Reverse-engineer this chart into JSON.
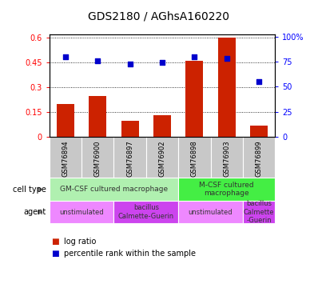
{
  "title": "GDS2180 / AGhsA160220",
  "samples": [
    "GSM76894",
    "GSM76900",
    "GSM76897",
    "GSM76902",
    "GSM76898",
    "GSM76903",
    "GSM76899"
  ],
  "log_ratio": [
    0.2,
    0.25,
    0.1,
    0.13,
    0.46,
    0.6,
    0.07
  ],
  "percentile_rank": [
    0.8,
    0.76,
    0.73,
    0.74,
    0.8,
    0.78,
    0.55
  ],
  "bar_color": "#cc2200",
  "scatter_color": "#0000cc",
  "left_yticks": [
    0,
    0.15,
    0.3,
    0.45,
    0.6
  ],
  "left_yticklabels": [
    "0",
    "0.15",
    "0.3",
    "0.45",
    "0.6"
  ],
  "right_yticks": [
    0,
    0.25,
    0.5,
    0.75,
    1.0
  ],
  "right_yticklabels": [
    "0",
    "25",
    "50",
    "75",
    "100%"
  ],
  "ylim": [
    0,
    0.62
  ],
  "right_ylim": [
    0,
    1.02
  ],
  "cell_regions": [
    {
      "start": 0,
      "end": 4,
      "label": "GM-CSF cultured macrophage",
      "color": "#b0f0b0"
    },
    {
      "start": 4,
      "end": 7,
      "label": "M-CSF cultured\nmacrophage",
      "color": "#44ee44"
    }
  ],
  "agent_regions": [
    {
      "start": 0,
      "end": 2,
      "label": "unstimulated",
      "color": "#ee88ff"
    },
    {
      "start": 2,
      "end": 4,
      "label": "bacillus\nCalmette-Guerin",
      "color": "#cc44ee"
    },
    {
      "start": 4,
      "end": 6,
      "label": "unstimulated",
      "color": "#ee88ff"
    },
    {
      "start": 6,
      "end": 7,
      "label": "bacillus\nCalmette\n-Guerin",
      "color": "#cc44ee"
    }
  ],
  "xtick_bg": "#c8c8c8",
  "background_color": "#ffffff",
  "title_fontsize": 10,
  "tick_fontsize": 7,
  "sample_fontsize": 6,
  "annot_fontsize": 7,
  "legend_fontsize": 7
}
